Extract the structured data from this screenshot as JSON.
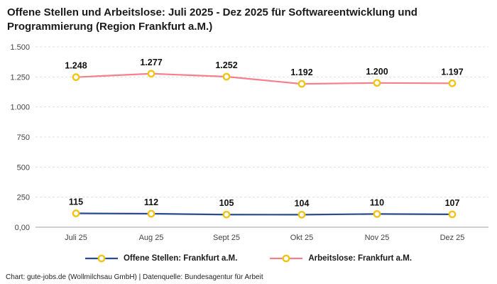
{
  "title": "Offene Stellen und Arbeitslose: Juli 2025 - Dez 2025 für Softwareentwicklung und Programmierung (Region Frankfurt a.M.)",
  "footer": "Chart: gute-jobs.de (Wollmilchsau GmbH) | Datenquelle: Bundesagentur für Arbeit",
  "chart_data": {
    "type": "line",
    "title": "Offene Stellen und Arbeitslose: Juli 2025 - Dez 2025 für Softwareentwicklung und Programmierung (Region Frankfurt a.M.)",
    "categories": [
      "Juli 25",
      "Aug 25",
      "Sept 25",
      "Okt 25",
      "Nov 25",
      "Dez 25"
    ],
    "series": [
      {
        "name": "Offene Stellen: Frankfurt a.M.",
        "values": [
          115,
          112,
          105,
          104,
          110,
          107
        ],
        "labels": [
          "115",
          "112",
          "105",
          "104",
          "110",
          "107"
        ],
        "color": "#2a4b8d"
      },
      {
        "name": "Arbeitslose: Frankfurt a.M.",
        "values": [
          1248,
          1277,
          1252,
          1192,
          1200,
          1197
        ],
        "labels": [
          "1.248",
          "1.277",
          "1.252",
          "1.192",
          "1.200",
          "1.197"
        ],
        "color": "#f4808e"
      }
    ],
    "marker": {
      "stroke": "#f0c419",
      "fill": "#ffffff"
    },
    "ylim": [
      0,
      1500
    ],
    "y_ticks": [
      {
        "value": 0,
        "label": "0,00"
      },
      {
        "value": 250,
        "label": "250"
      },
      {
        "value": 500,
        "label": "500"
      },
      {
        "value": 750,
        "label": "750"
      },
      {
        "value": 1000,
        "label": "1.000"
      },
      {
        "value": 1250,
        "label": "1.250"
      },
      {
        "value": 1500,
        "label": "1.500"
      }
    ],
    "grid": true,
    "legend_position": "bottom",
    "xlabel": "",
    "ylabel": ""
  }
}
